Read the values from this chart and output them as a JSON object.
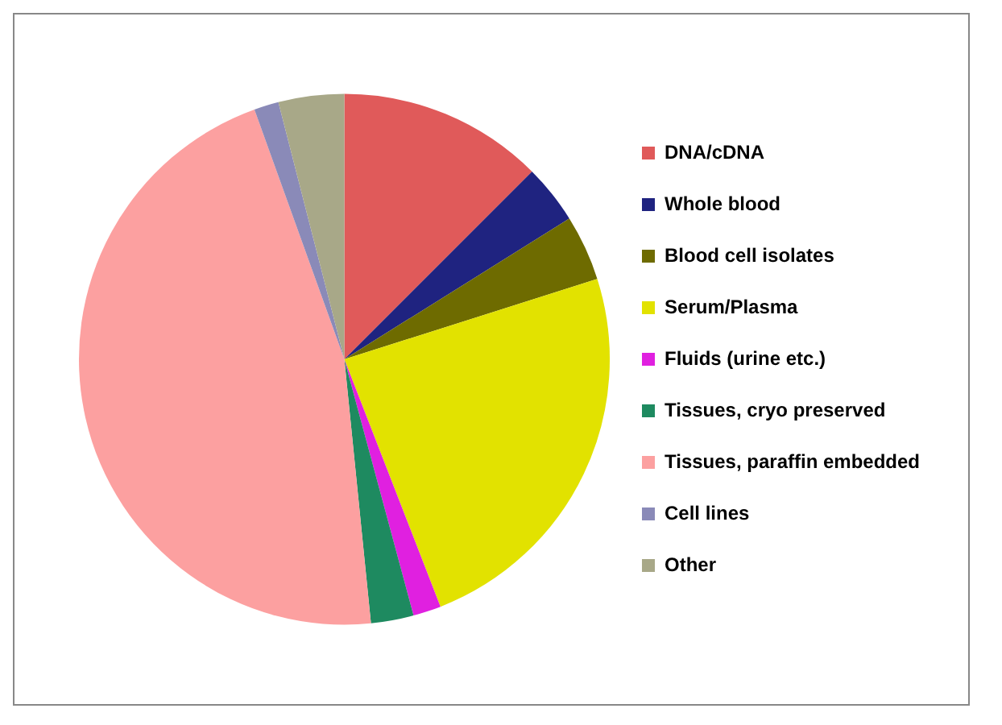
{
  "chart_data": {
    "type": "pie",
    "categories": [
      "DNA/cDNA",
      "Whole blood",
      "Blood cell isolates",
      "Serum/Plasma",
      "Fluids (urine etc.)",
      "Tissues, cryo preserved",
      "Tissues, paraffin embedded",
      "Cell lines",
      "Other"
    ],
    "values": [
      12.5,
      3.6,
      4.0,
      24.0,
      1.7,
      2.6,
      46.1,
      1.5,
      4.0
    ],
    "colors": [
      "#e05a5a",
      "#1f2380",
      "#6e6b00",
      "#e2e200",
      "#e020e0",
      "#1e8a60",
      "#fca0a0",
      "#8a8ab8",
      "#a8a888"
    ],
    "legend": "right"
  }
}
